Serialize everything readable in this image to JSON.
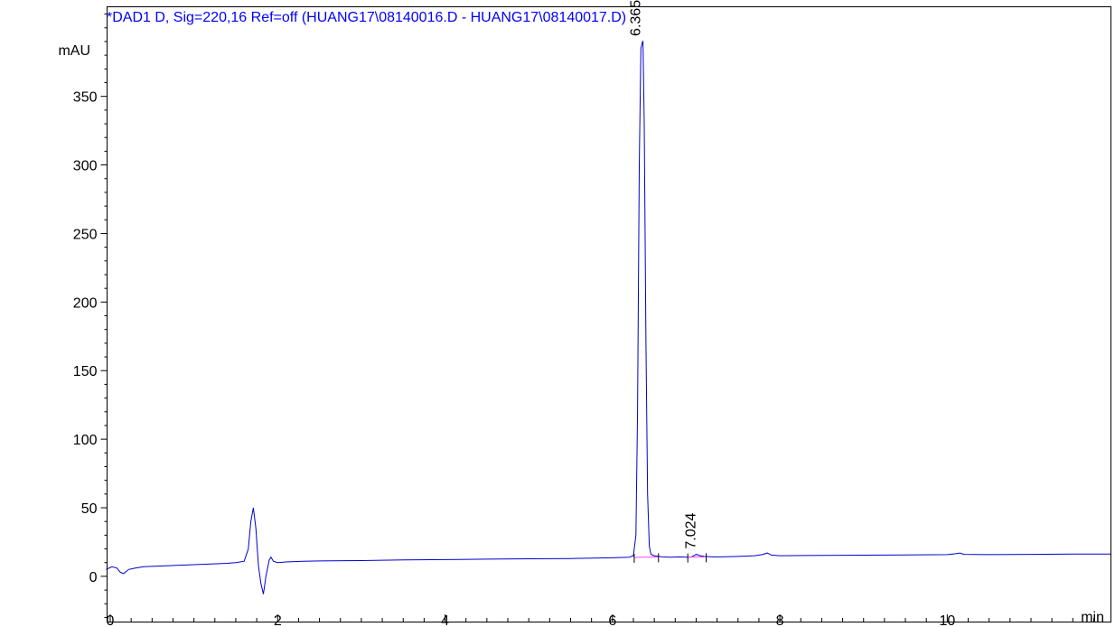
{
  "chart_data": {
    "type": "line",
    "title": "*DAD1 D, Sig=220,16 Ref=off (HUANG17\\08140016.D - HUANG17\\08140017.D)",
    "xlabel": "min",
    "ylabel": "mAU",
    "xlim": [
      0,
      11.95
    ],
    "ylim": [
      -33,
      415
    ],
    "x_ticks": [
      0,
      2,
      4,
      6,
      8,
      10
    ],
    "x_tick_labels": [
      "0",
      "2",
      "4",
      "6",
      "8",
      "10"
    ],
    "y_ticks": [
      0,
      50,
      100,
      150,
      200,
      250,
      300,
      350
    ],
    "y_tick_labels": [
      "0",
      "50",
      "100",
      "150",
      "200",
      "250",
      "300",
      "350"
    ],
    "grid": false,
    "series": [
      {
        "color": "#0000cc",
        "x": [
          -0.05,
          0.02,
          0.08,
          0.12,
          0.16,
          0.22,
          0.3,
          0.4,
          0.6,
          0.8,
          1.0,
          1.2,
          1.4,
          1.5,
          1.6,
          1.65,
          1.68,
          1.71,
          1.74,
          1.77,
          1.8,
          1.83,
          1.86,
          1.9,
          1.92,
          1.95,
          2.0,
          2.1,
          2.3,
          2.5,
          3.0,
          3.5,
          4.0,
          4.5,
          5.0,
          5.5,
          6.0,
          6.2,
          6.25,
          6.28,
          6.3,
          6.32,
          6.34,
          6.36,
          6.365,
          6.38,
          6.4,
          6.42,
          6.44,
          6.46,
          6.5,
          6.55,
          6.6,
          6.7,
          6.8,
          6.9,
          6.95,
          7.0,
          7.05,
          7.1,
          7.2,
          7.3,
          7.5,
          7.7,
          7.8,
          7.85,
          7.9,
          8.0,
          8.5,
          9.0,
          9.5,
          10.0,
          10.1,
          10.15,
          10.2,
          10.5,
          11.0,
          11.5,
          11.95
        ],
        "y": [
          5,
          7,
          6,
          3,
          2,
          5,
          6,
          7,
          7.5,
          8,
          8.5,
          9,
          9.5,
          10,
          11,
          20,
          40,
          50,
          35,
          8,
          -5,
          -13,
          0,
          12,
          14,
          11,
          10,
          10.5,
          11,
          11.2,
          11.5,
          12,
          12.2,
          12.5,
          12.8,
          13,
          13.5,
          14,
          15,
          30,
          120,
          300,
          385,
          390,
          390,
          330,
          170,
          60,
          22,
          16,
          15,
          14.5,
          14.2,
          14,
          14.2,
          14,
          14.3,
          16,
          15,
          14.5,
          14.2,
          14.2,
          14.5,
          15,
          16,
          17,
          15.5,
          15,
          15.2,
          15.4,
          15.6,
          15.8,
          16.5,
          17,
          16,
          15.8,
          16,
          16.2,
          16.3
        ]
      }
    ],
    "peaks": [
      {
        "label": "6.365",
        "x": 6.365,
        "y": 390
      },
      {
        "label": "7.024",
        "x": 7.024,
        "y": 16
      }
    ],
    "baselines": [
      {
        "color": "#ff44ff",
        "x": [
          6.26,
          6.55
        ],
        "y": [
          13.8,
          14.2
        ]
      },
      {
        "color": "#ff44ff",
        "x": [
          6.9,
          7.12
        ],
        "y": [
          14.0,
          14.2
        ]
      }
    ],
    "colors": {
      "signal": "#0000cc",
      "title": "#0000ff",
      "baseline": "#ff44ff",
      "axis": "#000000"
    }
  }
}
